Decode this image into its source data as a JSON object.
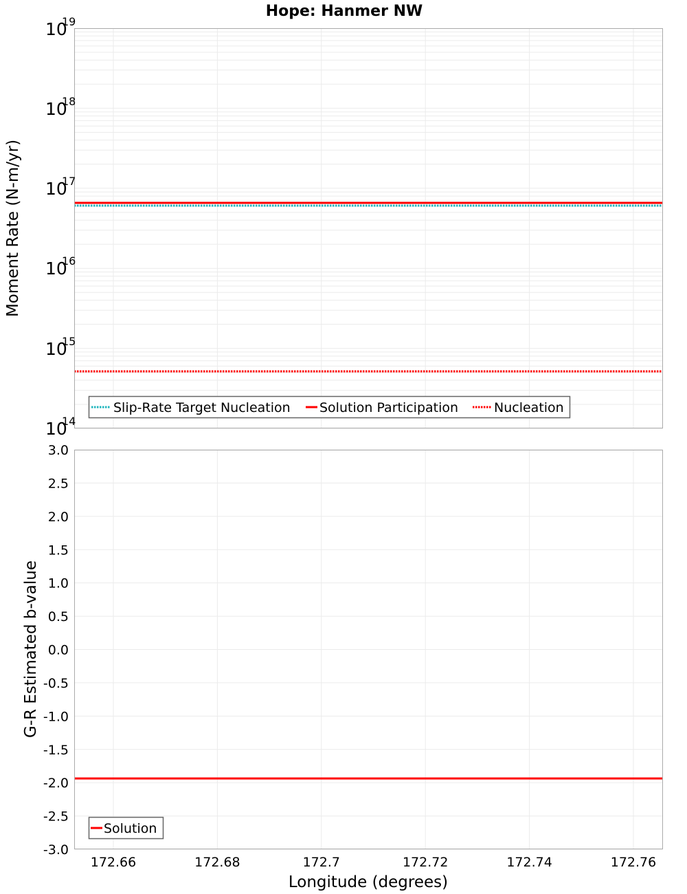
{
  "title": "Hope: Hanmer NW",
  "colors": {
    "slip_rate_target": "#1fb5bd",
    "solution": "#ff0000",
    "nucleation": "#ff0000",
    "grid": "#ebebeb",
    "frame": "#aaaaaa",
    "legend_border": "#666666"
  },
  "chart_data": [
    {
      "type": "line",
      "title": "Hope: Hanmer NW",
      "xlabel": "Longitude (degrees)",
      "ylabel": "Moment Rate (N-m/yr)",
      "yscale": "log",
      "ylim": [
        100000000000000.0,
        1e+19
      ],
      "xlim": [
        172.6525,
        172.7657
      ],
      "y_ticks": [
        {
          "base": "10",
          "exp": "14",
          "value": 100000000000000.0
        },
        {
          "base": "10",
          "exp": "15",
          "value": 1000000000000000.0
        },
        {
          "base": "10",
          "exp": "16",
          "value": 1e+16
        },
        {
          "base": "10",
          "exp": "17",
          "value": 1e+17
        },
        {
          "base": "10",
          "exp": "18",
          "value": 1e+18
        },
        {
          "base": "10",
          "exp": "19",
          "value": 1e+19
        }
      ],
      "grid": true,
      "legend_position": "lower-left",
      "series": [
        {
          "name": "Slip-Rate Target Nucleation",
          "style": "dotted",
          "color": "#1fb5bd",
          "x": [
            172.6525,
            172.7657
          ],
          "values": [
            6e+16,
            6e+16
          ]
        },
        {
          "name": "Solution Participation",
          "style": "solid",
          "color": "#ff0000",
          "x": [
            172.6525,
            172.7657
          ],
          "values": [
            6.6e+16,
            6.6e+16
          ]
        },
        {
          "name": "Nucleation",
          "style": "dotted",
          "color": "#ff0000",
          "x": [
            172.6525,
            172.7657
          ],
          "values": [
            510000000000000.0,
            510000000000000.0
          ]
        }
      ]
    },
    {
      "type": "line",
      "xlabel": "Longitude (degrees)",
      "ylabel": "G-R Estimated b-value",
      "yscale": "linear",
      "ylim": [
        -3.0,
        3.0
      ],
      "xlim": [
        172.6525,
        172.7657
      ],
      "y_ticks": [
        "3.0",
        "2.5",
        "2.0",
        "1.5",
        "1.0",
        "0.5",
        "0.0",
        "-0.5",
        "-1.0",
        "-1.5",
        "-2.0",
        "-2.5",
        "-3.0"
      ],
      "x_ticks": [
        "172.66",
        "172.68",
        "172.7",
        "172.72",
        "172.74",
        "172.76"
      ],
      "grid": true,
      "legend_position": "lower-left",
      "series": [
        {
          "name": "Solution",
          "style": "solid",
          "color": "#ff0000",
          "x": [
            172.6525,
            172.7657
          ],
          "values": [
            -1.94,
            -1.94
          ]
        }
      ]
    }
  ],
  "top_plot": {
    "ylabel": "Moment Rate (N-m/yr)",
    "ticks": [
      {
        "base": "10",
        "exp": "19"
      },
      {
        "base": "10",
        "exp": "18"
      },
      {
        "base": "10",
        "exp": "17"
      },
      {
        "base": "10",
        "exp": "16"
      },
      {
        "base": "10",
        "exp": "15"
      },
      {
        "base": "10",
        "exp": "14"
      }
    ],
    "legend": [
      "Slip-Rate Target Nucleation",
      "Solution Participation",
      "Nucleation"
    ]
  },
  "bottom_plot": {
    "ylabel": "G-R Estimated b-value",
    "ticks": [
      "3.0",
      "2.5",
      "2.0",
      "1.5",
      "1.0",
      "0.5",
      "0.0",
      "-0.5",
      "-1.0",
      "-1.5",
      "-2.0",
      "-2.5",
      "-3.0"
    ],
    "legend": [
      "Solution"
    ]
  },
  "x_axis": {
    "label": "Longitude (degrees)",
    "ticks": [
      "172.66",
      "172.68",
      "172.7",
      "172.72",
      "172.74",
      "172.76"
    ]
  }
}
